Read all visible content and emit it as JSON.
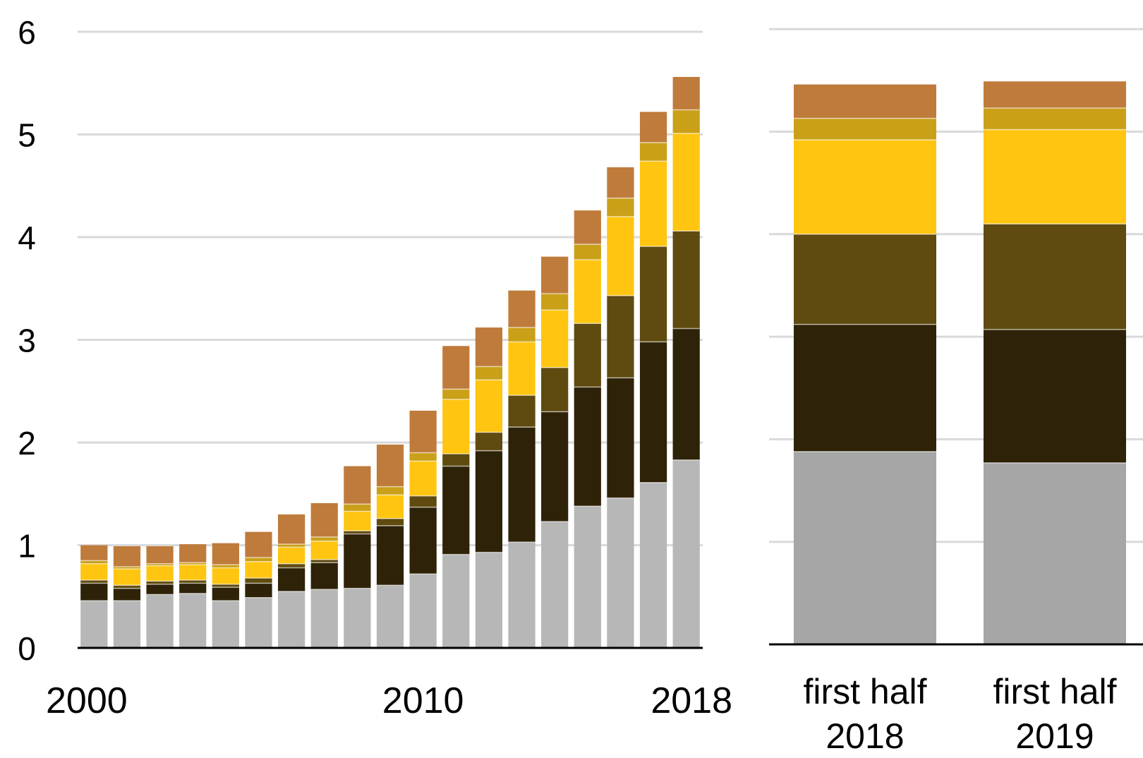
{
  "colors": {
    "grid": "#d9d9d9",
    "axis": "#000000",
    "series": [
      "#b7b7b7",
      "#2e2208",
      "#5f4a10",
      "#ffc510",
      "#c9a018",
      "#bf7b3b"
    ],
    "right_base": "#a6a6a6"
  },
  "chart_data": [
    {
      "type": "bar",
      "stacked": true,
      "title": "",
      "xlabel": "",
      "ylabel": "",
      "ylim": [
        0,
        6
      ],
      "y_ticks": [
        "0",
        "1",
        "2",
        "3",
        "4",
        "5",
        "6"
      ],
      "x_tick_labels": [
        {
          "category": "2000",
          "label": "2000"
        },
        {
          "category": "2010",
          "label": "2010"
        },
        {
          "category": "2018",
          "label": "2018"
        }
      ],
      "grid": true,
      "legend": "none",
      "categories": [
        "2000",
        "2001",
        "2002",
        "2003",
        "2004",
        "2005",
        "2006",
        "2007",
        "2008",
        "2009",
        "2010",
        "2011",
        "2012",
        "2013",
        "2014",
        "2015",
        "2016",
        "2017",
        "2018"
      ],
      "series": [
        {
          "values": [
            0.46,
            0.46,
            0.52,
            0.53,
            0.46,
            0.49,
            0.55,
            0.57,
            0.58,
            0.61,
            0.72,
            0.91,
            0.93,
            1.03,
            1.23,
            1.38,
            1.46,
            1.61,
            1.83
          ]
        },
        {
          "values": [
            0.17,
            0.12,
            0.1,
            0.1,
            0.13,
            0.14,
            0.23,
            0.26,
            0.53,
            0.58,
            0.65,
            0.86,
            0.99,
            1.12,
            1.07,
            1.16,
            1.17,
            1.37,
            1.28
          ]
        },
        {
          "values": [
            0.03,
            0.03,
            0.03,
            0.03,
            0.03,
            0.05,
            0.04,
            0.03,
            0.03,
            0.07,
            0.11,
            0.12,
            0.18,
            0.31,
            0.43,
            0.62,
            0.8,
            0.93,
            0.95
          ]
        },
        {
          "values": [
            0.16,
            0.16,
            0.15,
            0.15,
            0.16,
            0.16,
            0.16,
            0.18,
            0.19,
            0.23,
            0.34,
            0.53,
            0.51,
            0.52,
            0.56,
            0.62,
            0.77,
            0.83,
            0.95
          ]
        },
        {
          "values": [
            0.03,
            0.02,
            0.02,
            0.02,
            0.03,
            0.04,
            0.03,
            0.04,
            0.07,
            0.08,
            0.08,
            0.1,
            0.13,
            0.14,
            0.16,
            0.15,
            0.18,
            0.18,
            0.23
          ]
        },
        {
          "values": [
            0.15,
            0.2,
            0.17,
            0.18,
            0.21,
            0.25,
            0.29,
            0.33,
            0.37,
            0.41,
            0.41,
            0.42,
            0.38,
            0.36,
            0.36,
            0.33,
            0.3,
            0.3,
            0.32
          ]
        }
      ]
    },
    {
      "type": "bar",
      "stacked": true,
      "title": "",
      "xlabel": "",
      "ylabel": "",
      "ylim": [
        0,
        6
      ],
      "grid": true,
      "legend": "none",
      "categories": [
        [
          "first half",
          "2018"
        ],
        [
          "first half",
          "2019"
        ]
      ],
      "series": [
        {
          "values": [
            1.88,
            1.77
          ]
        },
        {
          "values": [
            1.24,
            1.3
          ]
        },
        {
          "values": [
            0.88,
            1.03
          ]
        },
        {
          "values": [
            0.92,
            0.92
          ]
        },
        {
          "values": [
            0.21,
            0.21
          ]
        },
        {
          "values": [
            0.33,
            0.26
          ]
        }
      ]
    }
  ]
}
